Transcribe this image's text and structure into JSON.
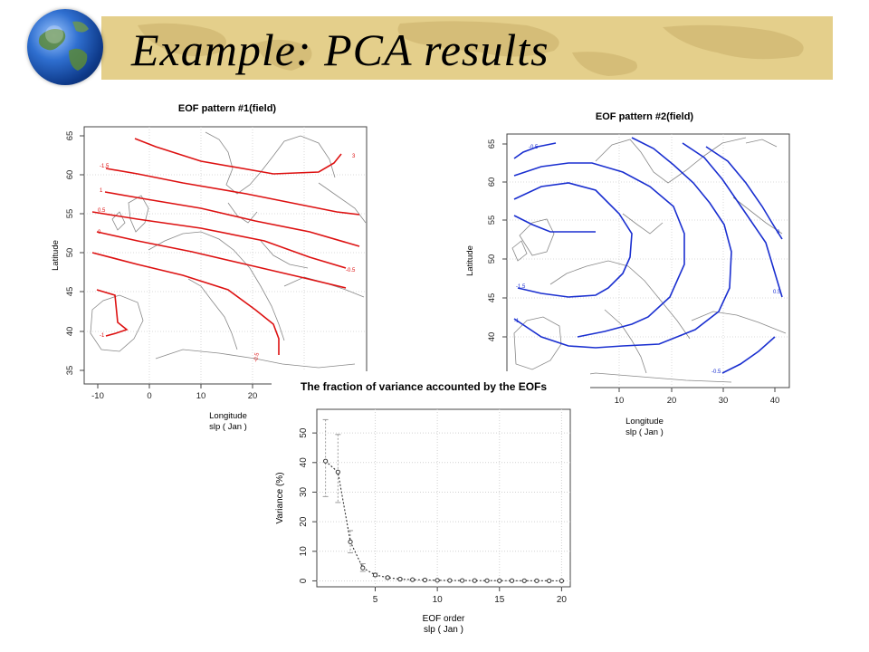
{
  "slide": {
    "title": "Example: PCA results"
  },
  "eof1": {
    "title": "EOF pattern #1(field)",
    "xlabel": "Longitude",
    "sublabel": "slp  ( Jan )",
    "ylabel": "Latitude",
    "xticks": [
      "-10",
      "0",
      "10",
      "20"
    ],
    "yticks": [
      "35",
      "40",
      "45",
      "50",
      "55",
      "60",
      "65"
    ],
    "contour_labels": [
      "3",
      "-1.5",
      "1",
      "0.5",
      "0",
      "-0.5",
      "-1",
      "-0.5"
    ],
    "color": "#dd1111"
  },
  "eof2": {
    "title": "EOF pattern #2(field)",
    "xlabel": "Longitude",
    "sublabel": "slp  ( Jan )",
    "ylabel": "Latitude",
    "xticks": [
      "10",
      "20",
      "30",
      "40"
    ],
    "yticks": [
      "40",
      "45",
      "50",
      "55",
      "60",
      "65"
    ],
    "contour_labels": [
      "-0.5",
      "-1.5",
      "-1",
      "0",
      "0.5",
      "-0.5"
    ],
    "color": "#1a2fd0"
  },
  "chart_data": {
    "type": "scatter",
    "title": "The fraction of variance accounted by the EOFs",
    "xlabel": "EOF order",
    "xsublabel": "slp  ( Jan )",
    "ylabel": "Variance (%)",
    "x": [
      1,
      2,
      3,
      4,
      5,
      6,
      7,
      8,
      9,
      10,
      11,
      12,
      13,
      14,
      15,
      16,
      17,
      18,
      19,
      20
    ],
    "values": [
      40.5,
      36.8,
      13.2,
      4.4,
      2.0,
      1.1,
      0.6,
      0.4,
      0.3,
      0.2,
      0.15,
      0.12,
      0.1,
      0.08,
      0.07,
      0.06,
      0.05,
      0.04,
      0.03,
      0.02
    ],
    "error_upper": [
      54.5,
      49.5,
      17.0,
      5.8,
      2.6,
      1.4,
      0.8,
      0.5,
      0.4,
      0.3,
      0.2,
      0.15,
      0.12,
      0.1,
      0.09,
      0.07,
      0.06,
      0.05,
      0.04,
      0.03
    ],
    "error_lower": [
      28.5,
      26.5,
      9.5,
      3.2,
      1.5,
      0.8,
      0.4,
      0.3,
      0.2,
      0.1,
      0.1,
      0.08,
      0.07,
      0.06,
      0.05,
      0.04,
      0.03,
      0.03,
      0.02,
      0.01
    ],
    "xticks": [
      5,
      10,
      15,
      20
    ],
    "yticks": [
      0,
      10,
      20,
      30,
      40,
      50
    ],
    "xlim": [
      0.3,
      20.7
    ],
    "ylim": [
      -2,
      58
    ],
    "grid": true
  }
}
